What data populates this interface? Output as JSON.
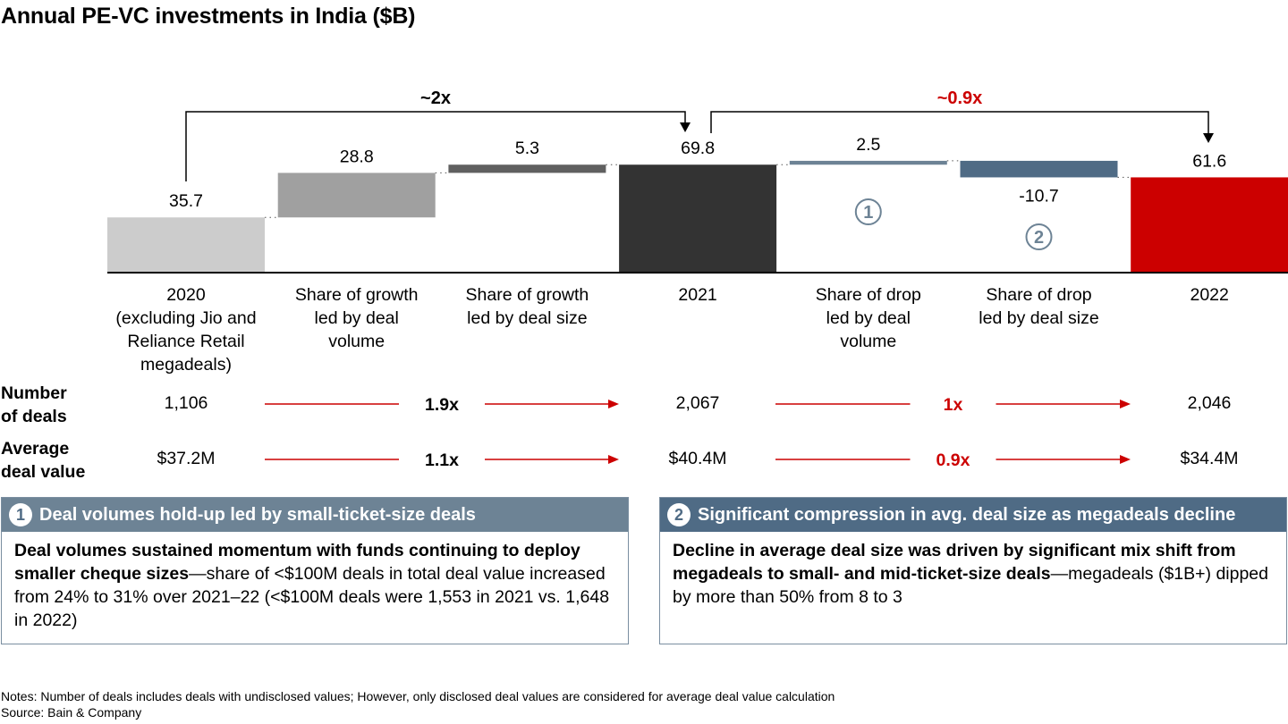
{
  "title": "Annual PE-VC investments in India ($B)",
  "colors": {
    "base_2020": "#cccccc",
    "growth_volume": "#a0a0a0",
    "growth_size": "#606060",
    "total_2021": "#333333",
    "drop_volume": "#6d8395",
    "drop_size": "#4f6b85",
    "total_2022": "#cc0000",
    "accent_red": "#cc0000"
  },
  "chart_data": {
    "type": "bar",
    "subtype": "waterfall",
    "categories": [
      "2020\n(excluding Jio and\nReliance Retail\nmegadeals)",
      "Share of growth\nled by deal\nvolume",
      "Share of growth\nled by deal size",
      "2021",
      "Share of drop\nled by deal\nvolume",
      "Share of drop\nled by deal size",
      "2022"
    ],
    "values": [
      35.7,
      28.8,
      5.3,
      69.8,
      2.5,
      -10.7,
      61.6
    ],
    "value_labels": [
      "35.7",
      "28.8",
      "5.3",
      "69.8",
      "2.5",
      "-10.7",
      "61.6"
    ],
    "kinds": [
      "total",
      "delta",
      "delta",
      "total",
      "delta",
      "delta",
      "total"
    ],
    "markers": [
      "",
      "",
      "",
      "",
      "1",
      "2",
      ""
    ],
    "bracket_labels": [
      {
        "text": "~2x",
        "from": 0,
        "to": 3,
        "color": "#000000"
      },
      {
        "text": "~0.9x",
        "from": 3,
        "to": 6,
        "color": "#cc0000"
      }
    ]
  },
  "metrics": {
    "deals_label": "Number\nof deals",
    "value_label": "Average\ndeal value",
    "deals": [
      "1,106",
      "2,067",
      "2,046"
    ],
    "values": [
      "$37.2M",
      "$40.4M",
      "$34.4M"
    ],
    "deals_mult": [
      "1.9x",
      "1x"
    ],
    "value_mult": [
      "1.1x",
      "0.9x"
    ]
  },
  "panels": [
    {
      "number": "1",
      "header": "Deal volumes hold-up led by small-ticket-size deals",
      "bold": "Deal volumes sustained momentum with funds continuing to deploy smaller cheque sizes",
      "text": "—share of <$100M deals in total deal value increased from 24% to 31% over 2021–22 (<$100M deals were 1,553 in 2021 vs. 1,648 in 2022)"
    },
    {
      "number": "2",
      "header": "Significant compression in avg. deal size as megadeals decline",
      "bold": "Decline in average deal size was driven by significant mix shift from megadeals to small- and mid-ticket-size deals",
      "text": "—megadeals ($1B+) dipped by more than 50% from 8 to 3"
    }
  ],
  "notes": "Notes: Number of deals includes deals with undisclosed values; However, only disclosed deal values are considered for average deal value calculation",
  "source": "Source: Bain & Company"
}
